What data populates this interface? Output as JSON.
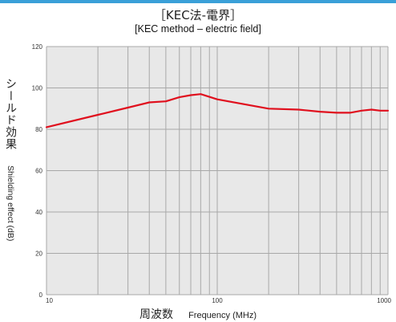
{
  "colors": {
    "top_rule": "#3aa0d8",
    "plot_background": "#e8e8e8",
    "grid": "#a8a8a8",
    "line": "#e0101e"
  },
  "chart_data": {
    "type": "line",
    "title": "［KEC法-電界］",
    "subtitle": "[KEC method – electric field]",
    "xlabel": "周波数",
    "xlabel_en": "Frequency (MHz)",
    "ylabel": "シールド効果",
    "ylabel_en": "Shielding effect (dB)",
    "x_scale": "log",
    "xlim": [
      10,
      1000
    ],
    "ylim": [
      0,
      120
    ],
    "x_ticks": [
      10,
      100,
      1000
    ],
    "x_tick_labels": [
      "10",
      "100",
      "1000"
    ],
    "y_ticks": [
      0,
      20,
      40,
      60,
      80,
      100,
      120
    ],
    "y_tick_labels": [
      "0",
      "20",
      "40",
      "60",
      "80",
      "100",
      "120"
    ],
    "grid": true,
    "legend": "none",
    "series": [
      {
        "x": [
          10,
          20,
          30,
          40,
          50,
          60,
          70,
          80,
          100,
          200,
          300,
          400,
          500,
          600,
          700,
          800,
          900,
          1000
        ],
        "y": [
          81,
          87,
          90.5,
          93,
          93.5,
          95.5,
          96.5,
          97,
          94.5,
          90,
          89.5,
          88.5,
          88,
          88,
          89,
          89.5,
          89,
          89
        ]
      }
    ]
  }
}
